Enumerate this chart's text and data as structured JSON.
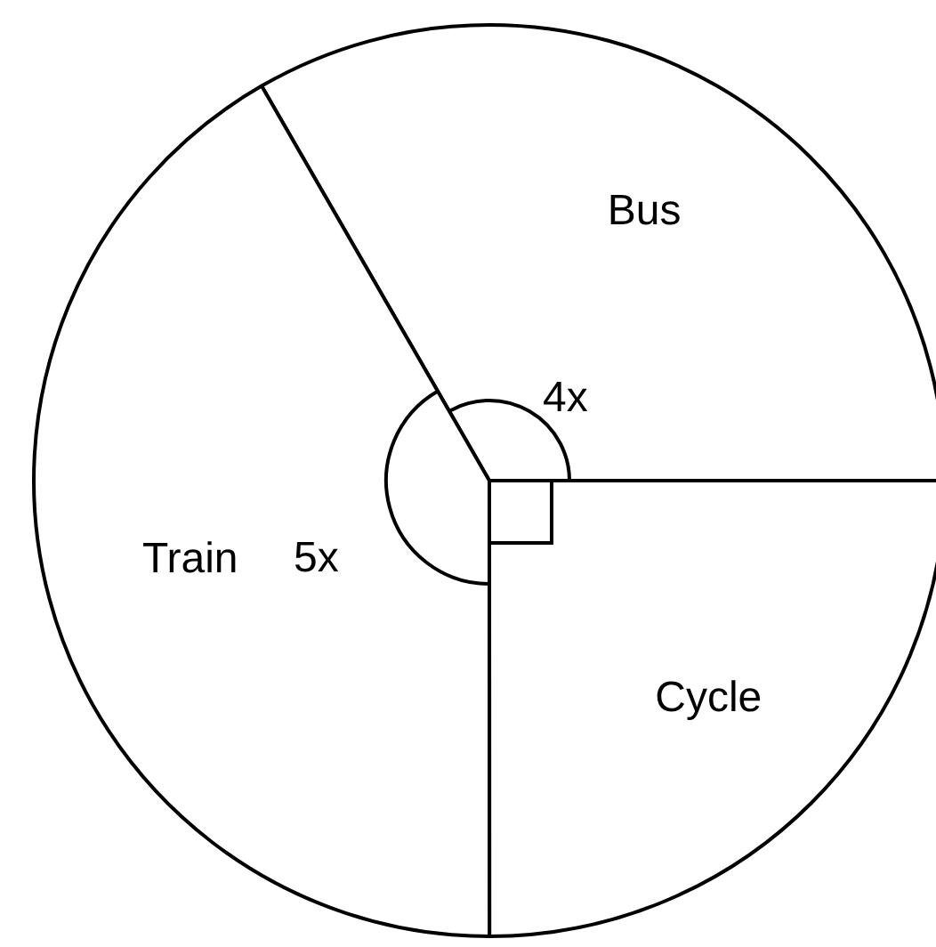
{
  "chart_data": {
    "type": "pie",
    "categories": [
      "Bus",
      "Cycle",
      "Train"
    ],
    "values": [
      33.33,
      25,
      41.67
    ],
    "colors": [
      "#ffffff",
      "#ffffff",
      "#ffffff"
    ],
    "annotations": [
      "4x",
      "5x"
    ],
    "legend": false
  }
}
